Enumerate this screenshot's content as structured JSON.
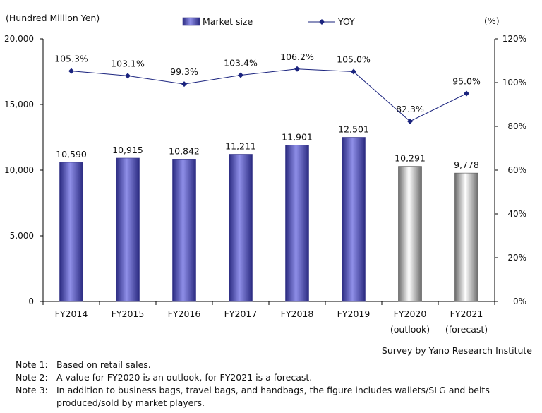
{
  "chart_data": {
    "type": "bar",
    "categories": [
      "FY2014",
      "FY2015",
      "FY2016",
      "FY2017",
      "FY2018",
      "FY2019",
      "FY2020",
      "FY2021"
    ],
    "category_sublabels": [
      "",
      "",
      "",
      "",
      "",
      "",
      "(outlook)",
      "(forecast)"
    ],
    "series": [
      {
        "name": "Market size",
        "type": "bar",
        "axis": "left",
        "values": [
          10590,
          10915,
          10842,
          11211,
          11901,
          12501,
          10291,
          9778
        ],
        "value_labels": [
          "10,590",
          "10,915",
          "10,842",
          "11,211",
          "11,901",
          "12,501",
          "10,291",
          "9,778"
        ]
      },
      {
        "name": "YOY",
        "type": "line",
        "axis": "right",
        "values": [
          105.3,
          103.1,
          99.3,
          103.4,
          106.2,
          105.0,
          82.3,
          95.0
        ],
        "value_labels": [
          "105.3%",
          "103.1%",
          "99.3%",
          "103.4%",
          "106.2%",
          "105.0%",
          "82.3%",
          "95.0%"
        ]
      }
    ],
    "left_axis": {
      "unit_label": "(Hundred Million Yen)",
      "ylim": [
        0,
        20000
      ],
      "ticks": [
        0,
        5000,
        10000,
        15000,
        20000
      ],
      "tick_labels": [
        "0",
        "5,000",
        "10,000",
        "15,000",
        "20,000"
      ]
    },
    "right_axis": {
      "unit_label": "(%)",
      "ylim": [
        0,
        120
      ],
      "ticks": [
        0,
        20,
        40,
        60,
        80,
        100,
        120
      ],
      "tick_labels": [
        "0%",
        "20%",
        "40%",
        "60%",
        "80%",
        "100%",
        "120%"
      ]
    },
    "legend_position": "top-center",
    "grid": false
  },
  "colors": {
    "bar_actual": "#8f8fe8",
    "bar_actual_dark": "#2a2a80",
    "bar_estimate": "#c8c8c8",
    "bar_estimate_dark": "#6a6a6a",
    "line": "#1a237e",
    "axis": "#000000"
  },
  "source": "Survey by Yano Research Institute",
  "notes": [
    {
      "label": "Note 1:",
      "text": "Based on retail sales."
    },
    {
      "label": "Note 2:",
      "text": "A value for FY2020 is an outlook, for FY2021 is a forecast."
    },
    {
      "label": "Note 3:",
      "text": "In addition to business bags, travel bags, and handbags, the figure includes wallets/SLG and belts",
      "continuation": "produced/sold by market players."
    }
  ]
}
